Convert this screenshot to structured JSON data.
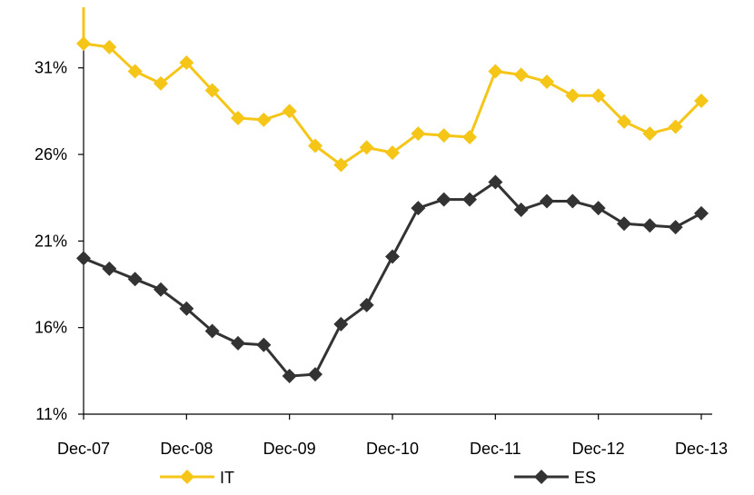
{
  "chart_data": {
    "type": "line",
    "x_tick_labels": [
      "Dec-07",
      "Dec-08",
      "Dec-09",
      "Dec-10",
      "Dec-11",
      "Dec-12",
      "Dec-13"
    ],
    "y_tick_labels": [
      "11%",
      "16%",
      "21%",
      "26%",
      "31%"
    ],
    "y_ticks": [
      11,
      16,
      21,
      26,
      31
    ],
    "ylim": [
      11,
      34.5
    ],
    "x_count": 25,
    "series": [
      {
        "name": "IT",
        "color": "#F5C518",
        "marker": "diamond",
        "start_value": 35.5,
        "values": [
          32.4,
          32.2,
          30.8,
          30.1,
          31.3,
          29.7,
          28.1,
          28.0,
          28.5,
          26.5,
          25.4,
          26.4,
          26.1,
          27.2,
          27.1,
          27.0,
          30.8,
          30.6,
          30.2,
          29.4,
          29.4,
          27.9,
          27.2,
          27.6,
          29.1
        ]
      },
      {
        "name": "ES",
        "color": "#333333",
        "marker": "diamond",
        "values": [
          20.0,
          19.4,
          18.8,
          18.2,
          17.1,
          15.8,
          15.1,
          15.0,
          13.2,
          13.3,
          16.2,
          17.3,
          20.1,
          22.9,
          23.4,
          23.4,
          24.4,
          22.8,
          23.3,
          23.3,
          22.9,
          22.0,
          21.9,
          21.8,
          22.6
        ]
      }
    ],
    "legend_position": "bottom",
    "grid": false
  }
}
